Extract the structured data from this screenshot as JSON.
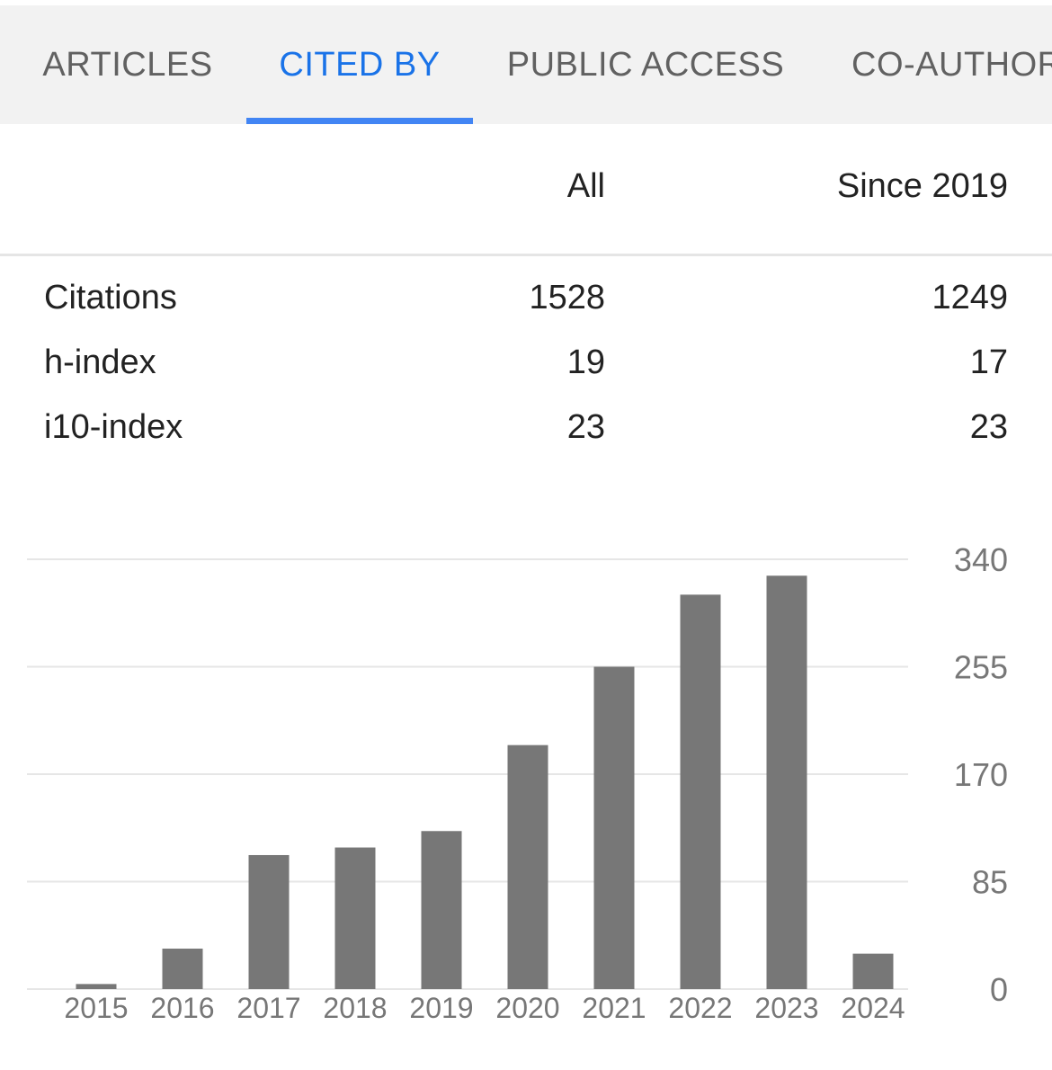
{
  "tabs": [
    {
      "label": "ARTICLES",
      "active": false
    },
    {
      "label": "CITED BY",
      "active": true
    },
    {
      "label": "PUBLIC ACCESS",
      "active": false
    },
    {
      "label": "CO-AUTHORS",
      "active": false
    }
  ],
  "stats": {
    "header_all": "All",
    "header_since": "Since 2019",
    "rows": [
      {
        "label": "Citations",
        "all": "1528",
        "since": "1249"
      },
      {
        "label": "h-index",
        "all": "19",
        "since": "17"
      },
      {
        "label": "i10-index",
        "all": "23",
        "since": "23"
      }
    ]
  },
  "colors": {
    "accent": "#1a73e8",
    "underline": "#4285f4",
    "bar": "#777777",
    "tab_bg": "#f2f2f2"
  },
  "chart_data": {
    "type": "bar",
    "categories": [
      "2015",
      "2016",
      "2017",
      "2018",
      "2019",
      "2020",
      "2021",
      "2022",
      "2023",
      "2024"
    ],
    "values": [
      4,
      32,
      106,
      112,
      125,
      193,
      255,
      312,
      327,
      28
    ],
    "yticks": [
      "0",
      "85",
      "170",
      "255",
      "340"
    ],
    "ylim": [
      0,
      340
    ],
    "grid": true,
    "y_axis_side": "right"
  }
}
